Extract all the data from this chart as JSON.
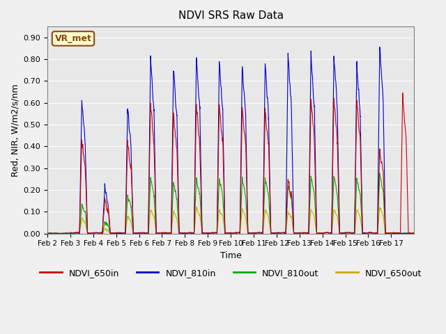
{
  "title": "NDVI SRS Raw Data",
  "xlabel": "Time",
  "ylabel": "Red, NIR, W/m2/s/nm",
  "ylim": [
    0.0,
    0.95
  ],
  "yticks": [
    0.0,
    0.1,
    0.2,
    0.3,
    0.4,
    0.5,
    0.6,
    0.7,
    0.8,
    0.9
  ],
  "plot_bg_color": "#e8e8e8",
  "fig_bg_color": "#f0f0f0",
  "annotation_text": "VR_met",
  "annotation_color": "#8B4513",
  "annotation_bg": "#ffffcc",
  "colors": {
    "NDVI_650in": "#cc0000",
    "NDVI_810in": "#0000cc",
    "NDVI_810out": "#00aa00",
    "NDVI_650out": "#ccaa00"
  },
  "day_labels": [
    "Feb 2",
    "Feb 3",
    "Feb 4",
    "Feb 5",
    "Feb 6",
    "Feb 7",
    "Feb 8",
    "Feb 9",
    "Feb 10",
    "Feb 11",
    "Feb 12",
    "Feb 13",
    "Feb 14",
    "Feb 15",
    "Feb 16",
    "Feb 17"
  ],
  "peaks_650in": [
    0.0,
    0.43,
    0.15,
    0.42,
    0.59,
    0.55,
    0.59,
    0.59,
    0.57,
    0.57,
    0.25,
    0.61,
    0.61,
    0.61,
    0.39,
    0.63
  ],
  "peaks_810in": [
    0.0,
    0.6,
    0.21,
    0.57,
    0.8,
    0.75,
    0.8,
    0.79,
    0.77,
    0.77,
    0.82,
    0.82,
    0.82,
    0.78,
    0.86,
    0.0
  ],
  "peaks_810out": [
    0.0,
    0.13,
    0.05,
    0.17,
    0.25,
    0.23,
    0.25,
    0.25,
    0.25,
    0.25,
    0.22,
    0.26,
    0.26,
    0.25,
    0.27,
    0.0
  ],
  "peaks_650out": [
    0.0,
    0.07,
    0.02,
    0.08,
    0.11,
    0.1,
    0.12,
    0.11,
    0.11,
    0.11,
    0.1,
    0.11,
    0.11,
    0.11,
    0.12,
    0.0
  ]
}
